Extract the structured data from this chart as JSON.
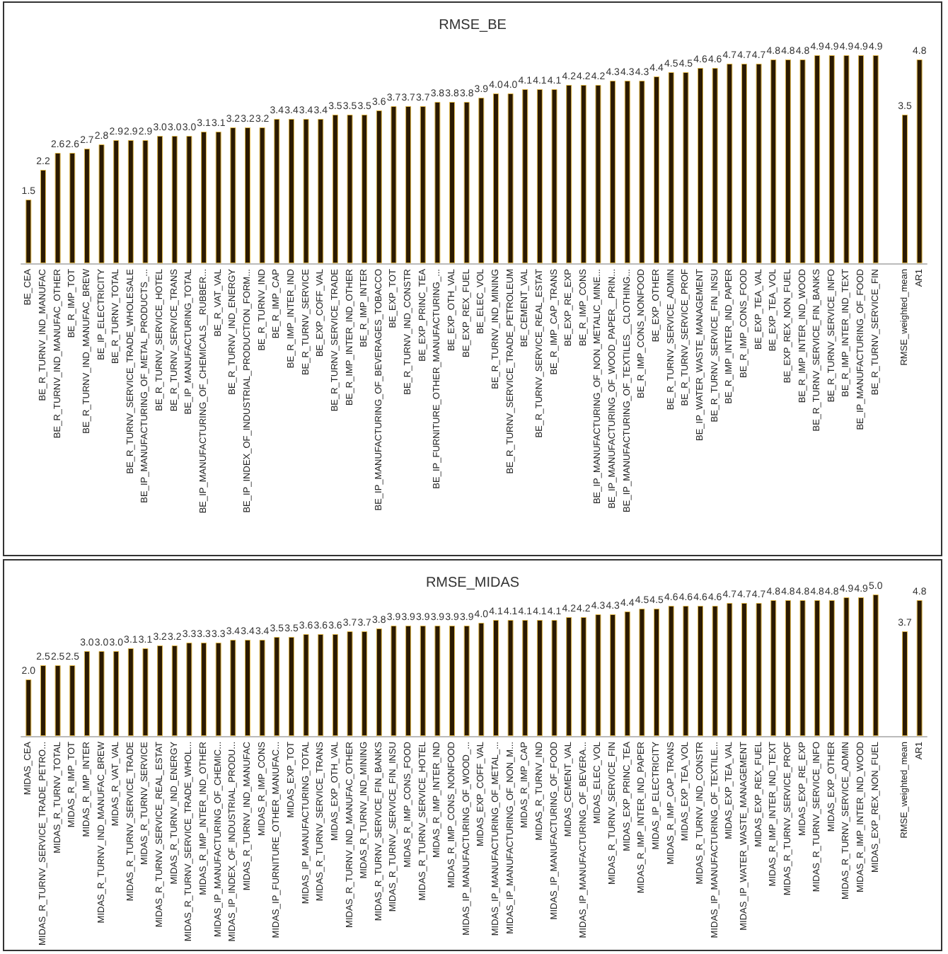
{
  "chart_data": [
    {
      "type": "bar",
      "title": "RMSE_BE",
      "color": "#2b1a02",
      "value_labels": [
        "1.5",
        "2.2",
        "2.6",
        "2.6",
        "2.7",
        "2.8",
        "2.9",
        "2.9",
        "2.9",
        "3.0",
        "3.0",
        "3.0",
        "3.1",
        "3.1",
        "3.2",
        "3.2",
        "3.2",
        "3.4",
        "3.4",
        "3.4",
        "3.4",
        "3.5",
        "3.5",
        "3.5",
        "3.6",
        "3.7",
        "3.7",
        "3.7",
        "3.8",
        "3.8",
        "3.8",
        "3.9",
        "4.0",
        "4.0",
        "4.1",
        "4.1",
        "4.1",
        "4.2",
        "4.2",
        "4.2",
        "4.3",
        "4.3",
        "4.3",
        "4.4",
        "4.5",
        "4.5",
        "4.6",
        "4.6",
        "4.7",
        "4.7",
        "4.7",
        "4.8",
        "4.8",
        "4.8",
        "4.9",
        "4.9",
        "4.9",
        "4.9",
        "4.9",
        null,
        "3.5",
        "4.8"
      ],
      "categories": [
        "BE_CEA",
        "BE_R_TURNV_IND_MANUFAC",
        "BE_R_TURNV_IND_MANUFAC_OTHER",
        "BE_R_IMP_TOT",
        "BE_R_TURNV_IND_MANUFAC_BREW",
        "BE_IP_ELECTRICITY",
        "BE_R_TURNV_TOTAL",
        "BE_R_TURNV_SERVICE_TRADE_WHOLESALE",
        "BE_IP_MANUFACTURING_OF_METAL_PRODUCTS_...",
        "BE_R_TURNV_SERVICE_HOTEL",
        "BE_R_TURNV_SERVICE_TRANS",
        "BE_IP_MANUFACTURING_TOTAL",
        "BE_IP_MANUFACTURING_OF_CHEMICALS__RUBBER...",
        "BE_R_VAT_VAL",
        "BE_R_TURNV_IND_ENERGY",
        "BE_IP_INDEX_OF_INDUSTRIAL_PRODUCTION_FORM...",
        "BE_R_TURNV_IND",
        "BE_R_IMP_CAP",
        "BE_R_IMP_INTER_IND",
        "BE_R_TURNV_SERVICE",
        "BE_EXP_COFF_VAL",
        "BE_R_TURNV_SERVICE_TRADE",
        "BE_R_IMP_INTER_IND_OTHER",
        "BE_R_IMP_INTER",
        "BE_IP_MANUFACTURING_OF_BEVERAGES_TOBACCO",
        "BE_EXP_TOT",
        "BE_R_TURNV_IND_CONSTR",
        "BE_EXP_PRINC_TEA",
        "BE_IP_FURNITURE_OTHER_MANUFACTURING_...",
        "BE_EXP_OTH_VAL",
        "BE_EXP_REX_FUEL",
        "BE_ELEC_VOL",
        "BE_R_TURNV_IND_MINING",
        "BE_R_TURNV_SERVICE_TRADE_PETROLEUM",
        "BE_CEMENT_VAL",
        "BE_R_TURNV_SERVICE_REAL_ESTAT",
        "BE_R_IMP_CAP_TRANS",
        "BE_EXP_RE_EXP",
        "BE_R_IMP_CONS",
        "BE_IP_MANUFACTURING_OF_NON_METALIC_MINE...",
        "BE_IP_MANUFACTURING_OF_WOOD_PAPER__PRIN...",
        "BE_IP_MANUFACTURING_OF_TEXTILES__CLOTHING...",
        "BE_R_IMP_CONS_NONFOOD",
        "BE_EXP_OTHER",
        "BE_R_TURNV_SERVICE_ADMIN",
        "BE_R_TURNV_SERVICE_PROF",
        "BE_IP_WATER_WASTE_MANAGEMENT",
        "BE_R_TURNV_SERVICE_FIN_INSU",
        "BE_R_IMP_INTER_IND_PAPER",
        "BE_R_IMP_CONS_FOOD",
        "BE_EXP_TEA_VAL",
        "BE_EXP_TEA_VOL",
        "BE_EXP_REX_NON_FUEL",
        "BE_R_IMP_INTER_IND_WOOD",
        "BE_R_TURNV_SERVICE_FIN_BANKS",
        "BE_R_TURNV_SERVICE_INFO",
        "BE_R_IMP_INTER_IND_TEXT",
        "BE_IP_MANUFACTURING_OF_FOOD",
        "BE_R_TURNV_SERVICE_FIN",
        null,
        "RMSE_weighted_mean",
        "AR1"
      ],
      "values": [
        1.5,
        2.2,
        2.6,
        2.6,
        2.7,
        2.8,
        2.9,
        2.9,
        2.9,
        3.0,
        3.0,
        3.0,
        3.1,
        3.1,
        3.2,
        3.2,
        3.2,
        3.4,
        3.4,
        3.4,
        3.4,
        3.5,
        3.5,
        3.5,
        3.6,
        3.7,
        3.7,
        3.7,
        3.8,
        3.8,
        3.8,
        3.9,
        4.0,
        4.0,
        4.1,
        4.1,
        4.1,
        4.2,
        4.2,
        4.2,
        4.3,
        4.3,
        4.3,
        4.4,
        4.5,
        4.5,
        4.6,
        4.6,
        4.7,
        4.7,
        4.7,
        4.8,
        4.8,
        4.8,
        4.9,
        4.9,
        4.9,
        4.9,
        4.9,
        null,
        3.5,
        4.8
      ]
    },
    {
      "type": "bar",
      "title": "RMSE_MIDAS",
      "color": "#2b1a02",
      "value_labels": [
        "2.0",
        "2.5",
        "2.5",
        "2.5",
        "3.0",
        "3.0",
        "3.0",
        "3.1",
        "3.1",
        "3.2",
        "3.2",
        "3.3",
        "3.3",
        "3.3",
        "3.4",
        "3.4",
        "3.4",
        "3.5",
        "3.5",
        "3.6",
        "3.6",
        "3.6",
        "3.7",
        "3.7",
        "3.8",
        "3.9",
        "3.9",
        "3.9",
        "3.9",
        "3.9",
        "3.9",
        "4.0",
        "4.1",
        "4.1",
        "4.1",
        "4.1",
        "4.1",
        "4.2",
        "4.2",
        "4.3",
        "4.3",
        "4.4",
        "4.5",
        "4.5",
        "4.6",
        "4.6",
        "4.6",
        "4.6",
        "4.7",
        "4.7",
        "4.7",
        "4.8",
        "4.8",
        "4.8",
        "4.8",
        "4.8",
        "4.9",
        "4.9",
        "5.0",
        null,
        "3.7",
        "4.8"
      ],
      "categories": [
        "MIDAS_CEA",
        "MIDAS_R_TURNV_SERVICE_TRADE_PETRO...",
        "MIDAS_R_TURNV_TOTAL",
        "MIDAS_R_IMP_TOT",
        "MIDAS_R_IMP_INTER",
        "MIDAS_R_TURNV_IND_MANUFAC_BREW",
        "MIDAS_R_VAT_VAL",
        "MIDAS_R_TURNV_SERVICE_TRADE",
        "MIDAS_R_TURNV_SERVICE",
        "MIDAS_R_TURNV_SERVICE_REAL_ESTAT",
        "MIDAS_R_TURNV_IND_ENERGY",
        "MIDAS_R_TURNV_SERVICE_TRADE_WHOL...",
        "MIDAS_R_IMP_INTER_IND_OTHER",
        "MIDAS_IP_MANUFACTURING_OF_CHEMIC...",
        "MIDAS_IP_INDEX_OF_INDUSTRIAL_PRODU...",
        "MIDAS_R_TURNV_IND_MANUFAC",
        "MIDAS_R_IMP_CONS",
        "MIDAS_IP_FURNITURE_OTHER_MANUFAC...",
        "MIDAS_EXP_TOT",
        "MIDAS_IP_MANUFACTURING_TOTAL",
        "MIDAS_R_TURNV_SERVICE_TRANS",
        "MIDAS_EXP_OTH_VAL",
        "MIDAS_R_TURNV_IND_MANUFAC_OTHER",
        "MIDAS_R_TURNV_IND_MINING",
        "MIDAS_R_TURNV_SERVICE_FIN_BANKS",
        "MIDAS_R_TURNV_SERVICE_FIN_INSU",
        "MIDAS_R_IMP_CONS_FOOD",
        "MIDAS_R_TURNV_SERVICE_HOTEL",
        "MIDAS_R_IMP_INTER_IND",
        "MIDAS_R_IMP_CONS_NONFOOD",
        "MIDAS_IP_MANUFACTURING_OF_WOOD_...",
        "MIDAS_EXP_COFF_VAL",
        "MIDAS_IP_MANUFACTURING_OF_METAL_...",
        "MIDAS_IP_MANUFACTURING_OF_NON_M...",
        "MIDAS_R_IMP_CAP",
        "MIDAS_R_TURNV_IND",
        "MIDAS_IP_MANUFACTURING_OF_FOOD",
        "MIDAS_CEMENT_VAL",
        "MIDAS_IP_MANUFACTURING_OF_BEVERA...",
        "MIDAS_ELEC_VOL",
        "MIDAS_R_TURNV_SERVICE_FIN",
        "MIDAS_EXP_PRINC_TEA",
        "MIDAS_R_IMP_INTER_IND_PAPER",
        "MIDAS_IP_ELECTRICITY",
        "MIDAS_R_IMP_CAP_TRANS",
        "MIDAS_EXP_TEA_VOL",
        "MIDAS_R_TURNV_IND_CONSTR",
        "MIDAS_IP_MANUFACTURING_OF_TEXTILE...",
        "MIDAS_EXP_TEA_VAL",
        "MIDAS_IP_WATER_WASTE_MANAGEMENT",
        "MIDAS_EXP_REX_FUEL",
        "MIDAS_R_IMP_INTER_IND_TEXT",
        "MIDAS_R_TURNV_SERVICE_PROF",
        "MIDAS_EXP_RE_EXP",
        "MIDAS_R_TURNV_SERVICE_INFO",
        "MIDAS_EXP_OTHER",
        "MIDAS_R_TURNV_SERVICE_ADMIN",
        "MIDAS_R_IMP_INTER_IND_WOOD",
        "MIDAS_EXP_REX_NON_FUEL",
        null,
        "RMSE_weighted_mean",
        "AR1"
      ],
      "values": [
        2.0,
        2.5,
        2.5,
        2.5,
        3.0,
        3.0,
        3.0,
        3.1,
        3.1,
        3.2,
        3.2,
        3.3,
        3.3,
        3.3,
        3.4,
        3.4,
        3.4,
        3.5,
        3.5,
        3.6,
        3.6,
        3.6,
        3.7,
        3.7,
        3.8,
        3.9,
        3.9,
        3.9,
        3.9,
        3.9,
        3.9,
        4.0,
        4.1,
        4.1,
        4.1,
        4.1,
        4.1,
        4.2,
        4.2,
        4.3,
        4.3,
        4.4,
        4.5,
        4.5,
        4.6,
        4.6,
        4.6,
        4.6,
        4.7,
        4.7,
        4.7,
        4.8,
        4.8,
        4.8,
        4.8,
        4.8,
        4.9,
        4.9,
        5.0,
        null,
        3.7,
        4.8
      ]
    }
  ]
}
